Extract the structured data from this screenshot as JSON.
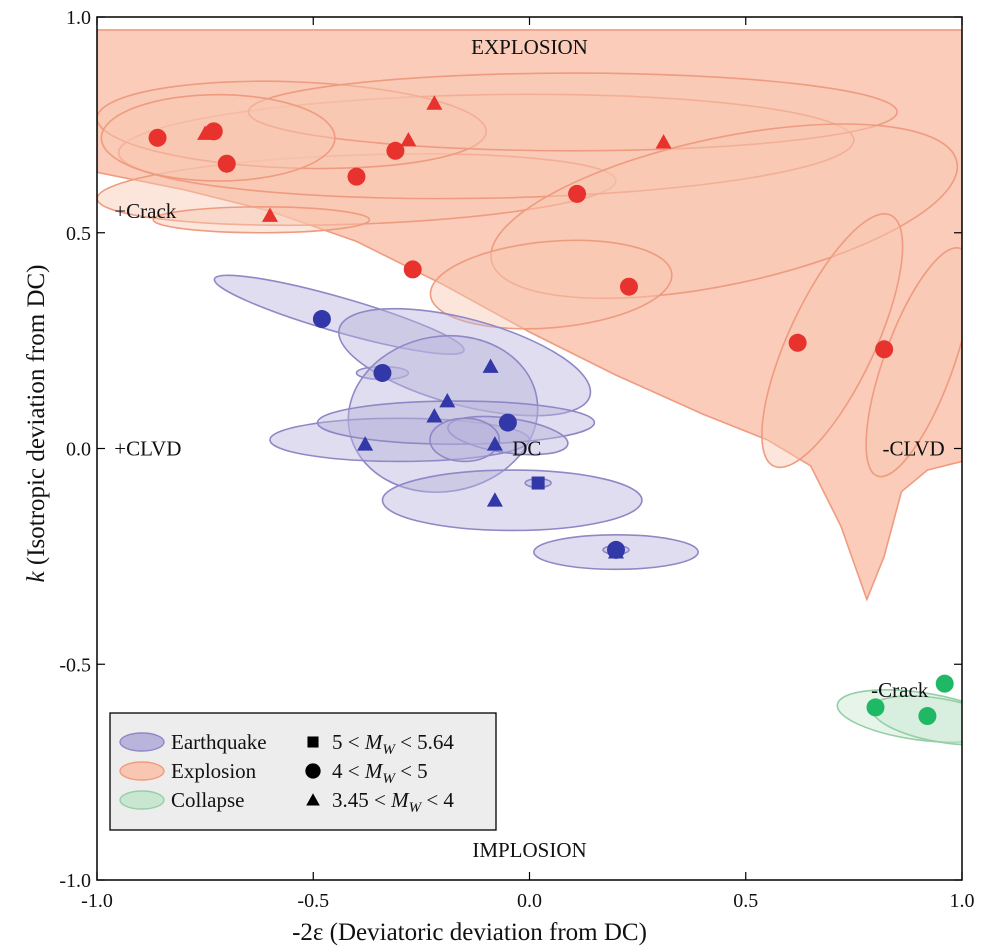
{
  "chart_data": {
    "type": "scatter",
    "xlabel": "-2ε (Deviatoric deviation from DC)",
    "ylabel": "(Isotropic deviation from DC)",
    "ylabel_italic_prefix": "k",
    "xlim": [
      -1.0,
      1.0
    ],
    "ylim": [
      -1.0,
      1.0
    ],
    "x_ticks": [
      "-1.0",
      "-0.5",
      "0.0",
      "0.5",
      "1.0"
    ],
    "y_ticks": [
      "1.0",
      "0.5",
      "0.0",
      "-0.5",
      "-1.0"
    ],
    "x_tick_values": [
      -1.0,
      -0.5,
      0.0,
      0.5,
      1.0
    ],
    "y_tick_values": [
      1.0,
      0.5,
      0.0,
      -0.5,
      -1.0
    ],
    "grid": false,
    "annotations": [
      {
        "text": "EXPLOSION",
        "x": 0.0,
        "y": 0.93,
        "anchor": "middle"
      },
      {
        "text": "IMPLOSION",
        "x": 0.0,
        "y": -0.93,
        "anchor": "middle"
      },
      {
        "text": "+Crack",
        "x": -0.96,
        "y": 0.55,
        "anchor": "start"
      },
      {
        "text": "+CLVD",
        "x": -0.96,
        "y": 0.0,
        "anchor": "start"
      },
      {
        "text": "-CLVD",
        "x": 0.96,
        "y": 0.0,
        "anchor": "end"
      },
      {
        "text": "DC",
        "x": -0.04,
        "y": 0.0,
        "anchor": "start"
      },
      {
        "text": "-Crack",
        "x": 0.79,
        "y": -0.56,
        "anchor": "start"
      }
    ],
    "colors": {
      "earthquake_fill": "#b9b4dc",
      "earthquake_edge": "#8f88c6",
      "earthquake_marker": "#3338a8",
      "explosion_fill": "#f9c7b1",
      "explosion_edge": "#ef9b80",
      "explosion_marker": "#e8322e",
      "collapse_fill": "#c8e6d0",
      "collapse_edge": "#95cfa6",
      "collapse_marker": "#1fb864"
    },
    "legend": {
      "placement": "bottom-left",
      "region_entries": [
        "Earthquake",
        "Explosion",
        "Collapse"
      ],
      "magnitude_entries": [
        {
          "marker": "square",
          "lower": "5",
          "upper": "5.64"
        },
        {
          "marker": "circle",
          "lower": "4",
          "upper": "5"
        },
        {
          "marker": "triangle",
          "lower": "3.45",
          "upper": "4"
        }
      ],
      "magnitude_symbol": "M",
      "magnitude_subscript": "W",
      "lt": "<"
    },
    "series": [
      {
        "name": "Earthquake",
        "points": [
          {
            "x": -0.48,
            "y": 0.3,
            "marker": "circle"
          },
          {
            "x": -0.34,
            "y": 0.175,
            "marker": "circle"
          },
          {
            "x": -0.05,
            "y": 0.06,
            "marker": "circle"
          },
          {
            "x": 0.2,
            "y": -0.235,
            "marker": "circle"
          },
          {
            "x": 0.02,
            "y": -0.08,
            "marker": "square"
          },
          {
            "x": -0.09,
            "y": 0.19,
            "marker": "triangle"
          },
          {
            "x": -0.19,
            "y": 0.11,
            "marker": "triangle"
          },
          {
            "x": -0.22,
            "y": 0.075,
            "marker": "triangle"
          },
          {
            "x": -0.38,
            "y": 0.01,
            "marker": "triangle"
          },
          {
            "x": -0.08,
            "y": 0.01,
            "marker": "triangle"
          },
          {
            "x": -0.08,
            "y": -0.12,
            "marker": "triangle"
          },
          {
            "x": 0.2,
            "y": -0.24,
            "marker": "triangle"
          }
        ]
      },
      {
        "name": "Explosion",
        "points": [
          {
            "x": -0.86,
            "y": 0.72,
            "marker": "circle"
          },
          {
            "x": -0.73,
            "y": 0.735,
            "marker": "circle"
          },
          {
            "x": -0.7,
            "y": 0.66,
            "marker": "circle"
          },
          {
            "x": -0.4,
            "y": 0.63,
            "marker": "circle"
          },
          {
            "x": -0.31,
            "y": 0.69,
            "marker": "circle"
          },
          {
            "x": 0.11,
            "y": 0.59,
            "marker": "circle"
          },
          {
            "x": -0.27,
            "y": 0.415,
            "marker": "circle"
          },
          {
            "x": 0.23,
            "y": 0.375,
            "marker": "circle"
          },
          {
            "x": 0.62,
            "y": 0.245,
            "marker": "circle"
          },
          {
            "x": 0.82,
            "y": 0.23,
            "marker": "circle"
          },
          {
            "x": -0.75,
            "y": 0.73,
            "marker": "triangle"
          },
          {
            "x": -0.22,
            "y": 0.8,
            "marker": "triangle"
          },
          {
            "x": -0.28,
            "y": 0.715,
            "marker": "triangle"
          },
          {
            "x": 0.31,
            "y": 0.71,
            "marker": "triangle"
          },
          {
            "x": -0.6,
            "y": 0.54,
            "marker": "triangle"
          }
        ]
      },
      {
        "name": "Collapse",
        "points": [
          {
            "x": 0.8,
            "y": -0.6,
            "marker": "circle"
          },
          {
            "x": 0.92,
            "y": -0.62,
            "marker": "circle"
          },
          {
            "x": 0.96,
            "y": -0.545,
            "marker": "circle"
          }
        ]
      }
    ],
    "regions": [
      {
        "series": "Explosion",
        "shape": "band",
        "upper": [
          [
            -1.0,
            0.97
          ],
          [
            1.0,
            0.97
          ]
        ],
        "lower": [
          [
            -1.0,
            0.64
          ],
          [
            -0.8,
            0.6
          ],
          [
            -0.6,
            0.55
          ],
          [
            -0.4,
            0.48
          ],
          [
            -0.2,
            0.38
          ],
          [
            0.0,
            0.27
          ],
          [
            0.2,
            0.17
          ],
          [
            0.4,
            0.08
          ],
          [
            0.55,
            0.02
          ],
          [
            0.65,
            -0.04
          ],
          [
            0.72,
            -0.18
          ],
          [
            0.78,
            -0.35
          ],
          [
            0.82,
            -0.25
          ],
          [
            0.86,
            -0.1
          ],
          [
            0.92,
            -0.05
          ],
          [
            1.0,
            -0.03
          ]
        ]
      },
      {
        "series": "Explosion",
        "shape": "ellipse",
        "cx": -0.4,
        "cy": 0.6,
        "rx": 0.6,
        "ry": 0.08,
        "rot": 2
      },
      {
        "series": "Explosion",
        "shape": "ellipse",
        "cx": -0.1,
        "cy": 0.7,
        "rx": 0.85,
        "ry": 0.12,
        "rot": 1
      },
      {
        "series": "Explosion",
        "shape": "ellipse",
        "cx": -0.55,
        "cy": 0.75,
        "rx": 0.45,
        "ry": 0.1,
        "rot": -2
      },
      {
        "series": "Explosion",
        "shape": "ellipse",
        "cx": 0.1,
        "cy": 0.78,
        "rx": 0.75,
        "ry": 0.09,
        "rot": 0
      },
      {
        "series": "Explosion",
        "shape": "ellipse",
        "cx": -0.72,
        "cy": 0.72,
        "rx": 0.27,
        "ry": 0.1,
        "rot": 0
      },
      {
        "series": "Explosion",
        "shape": "ellipse",
        "cx": 0.45,
        "cy": 0.55,
        "rx": 0.55,
        "ry": 0.17,
        "rot": 12
      },
      {
        "series": "Explosion",
        "shape": "ellipse",
        "cx": -0.62,
        "cy": 0.53,
        "rx": 0.25,
        "ry": 0.03,
        "rot": 0
      },
      {
        "series": "Explosion",
        "shape": "ellipse",
        "cx": 0.05,
        "cy": 0.38,
        "rx": 0.28,
        "ry": 0.1,
        "rot": 5
      },
      {
        "series": "Explosion",
        "shape": "ellipse",
        "cx": 0.7,
        "cy": 0.25,
        "rx": 0.32,
        "ry": 0.1,
        "rot": 65
      },
      {
        "series": "Explosion",
        "shape": "ellipse",
        "cx": 0.9,
        "cy": 0.2,
        "rx": 0.28,
        "ry": 0.08,
        "rot": 70
      },
      {
        "series": "Earthquake",
        "shape": "ellipse",
        "cx": -0.44,
        "cy": 0.31,
        "rx": 0.3,
        "ry": 0.04,
        "rot": -16
      },
      {
        "series": "Earthquake",
        "shape": "ellipse",
        "cx": -0.34,
        "cy": 0.175,
        "rx": 0.06,
        "ry": 0.015,
        "rot": 0
      },
      {
        "series": "Earthquake",
        "shape": "ellipse",
        "cx": -0.15,
        "cy": 0.2,
        "rx": 0.3,
        "ry": 0.1,
        "rot": -15
      },
      {
        "series": "Earthquake",
        "shape": "ellipse",
        "cx": -0.2,
        "cy": 0.08,
        "rx": 0.22,
        "ry": 0.18,
        "rot": 10
      },
      {
        "series": "Earthquake",
        "shape": "ellipse",
        "cx": -0.3,
        "cy": 0.02,
        "rx": 0.3,
        "ry": 0.05,
        "rot": 0
      },
      {
        "series": "Earthquake",
        "shape": "ellipse",
        "cx": -0.17,
        "cy": 0.06,
        "rx": 0.32,
        "ry": 0.05,
        "rot": 0
      },
      {
        "series": "Earthquake",
        "shape": "ellipse",
        "cx": -0.05,
        "cy": 0.03,
        "rx": 0.14,
        "ry": 0.04,
        "rot": -8
      },
      {
        "series": "Earthquake",
        "shape": "ellipse",
        "cx": -0.15,
        "cy": 0.02,
        "rx": 0.08,
        "ry": 0.05,
        "rot": 0
      },
      {
        "series": "Earthquake",
        "shape": "ellipse",
        "cx": -0.04,
        "cy": -0.12,
        "rx": 0.3,
        "ry": 0.07,
        "rot": 0
      },
      {
        "series": "Earthquake",
        "shape": "ellipse",
        "cx": 0.02,
        "cy": -0.08,
        "rx": 0.03,
        "ry": 0.01,
        "rot": 0
      },
      {
        "series": "Earthquake",
        "shape": "ellipse",
        "cx": 0.2,
        "cy": -0.24,
        "rx": 0.19,
        "ry": 0.04,
        "rot": 0
      },
      {
        "series": "Earthquake",
        "shape": "ellipse",
        "cx": 0.2,
        "cy": -0.235,
        "rx": 0.03,
        "ry": 0.01,
        "rot": 0
      },
      {
        "series": "Collapse",
        "shape": "ellipse",
        "cx": 0.9,
        "cy": -0.62,
        "rx": 0.19,
        "ry": 0.055,
        "rot": -8
      },
      {
        "series": "Collapse",
        "shape": "ellipse",
        "cx": 0.95,
        "cy": -0.63,
        "rx": 0.16,
        "ry": 0.05,
        "rot": -10
      }
    ]
  }
}
